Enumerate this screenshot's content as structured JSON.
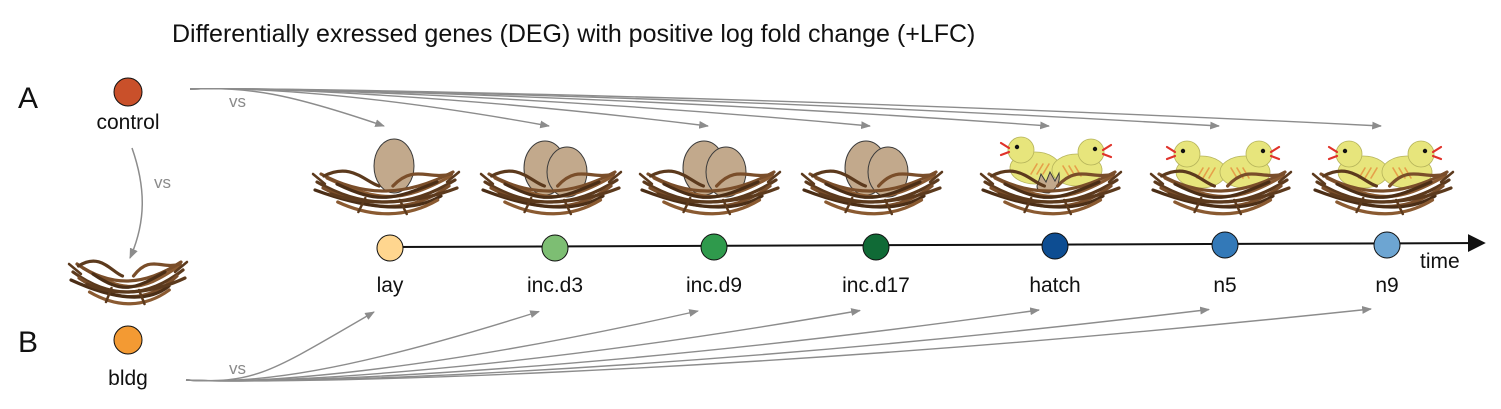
{
  "title": "Differentially exressed genes (DEG) with positive log fold change (+LFC)",
  "panels": {
    "a": "A",
    "b": "B"
  },
  "groups": {
    "control": {
      "label": "control",
      "color": "#c9502a"
    },
    "bldg": {
      "label": "bldg",
      "color": "#f39a33"
    }
  },
  "vs_label": "vs",
  "time_label": "time",
  "stages": [
    {
      "label": "lay",
      "color": "#ffd68f",
      "nest": "one-egg"
    },
    {
      "label": "inc.d3",
      "color": "#7dbe73",
      "nest": "two-eggs"
    },
    {
      "label": "inc.d9",
      "color": "#2f9a4c",
      "nest": "two-eggs"
    },
    {
      "label": "inc.d17",
      "color": "#106a36",
      "nest": "two-eggs"
    },
    {
      "label": "hatch",
      "color": "#0d4d92",
      "nest": "hatching-chicks"
    },
    {
      "label": "n5",
      "color": "#3379b8",
      "nest": "two-chicks"
    },
    {
      "label": "n9",
      "color": "#6da5d2",
      "nest": "two-chicks"
    }
  ],
  "colors": {
    "arrow": "#8c8c8c",
    "timeline": "#111111",
    "twig": "#6b4423",
    "egg": "#c2a98c",
    "chick": "#e7e57c"
  }
}
